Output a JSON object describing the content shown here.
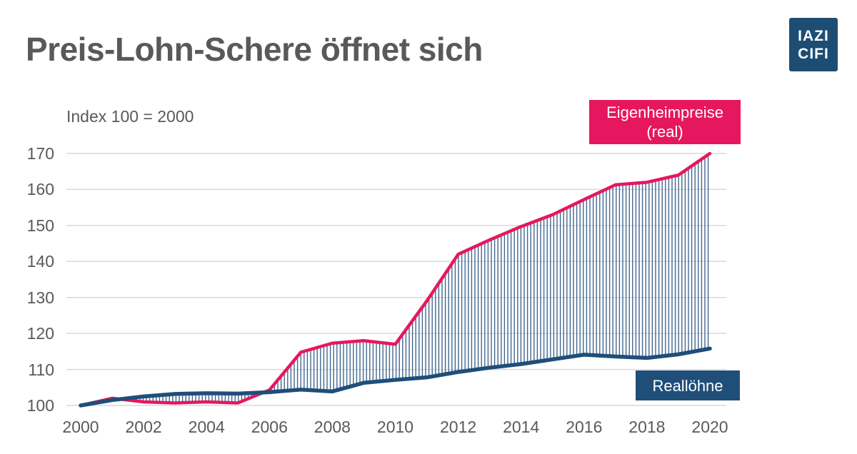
{
  "header": {
    "title": "Preis-Lohn-Schere öffnet sich",
    "logo_lines": [
      "IAZI",
      "CIFI"
    ],
    "logo_color": "#1d4d73",
    "text_color": "#595959"
  },
  "chart_data": {
    "type": "line",
    "title": "Preis-Lohn-Schere öffnet sich",
    "subtitle": "Index 100 = 2000",
    "x": [
      2000,
      2001,
      2002,
      2003,
      2004,
      2005,
      2006,
      2007,
      2008,
      2009,
      2010,
      2011,
      2012,
      2013,
      2014,
      2015,
      2016,
      2017,
      2018,
      2019,
      2020
    ],
    "series": [
      {
        "name": "Eigenheimpreise (real)",
        "label_lines": [
          "Eigenheimpreise",
          "(real)"
        ],
        "color": "#e6175e",
        "values": [
          100,
          102,
          101,
          100.7,
          101,
          100.7,
          104.3,
          114.8,
          117.3,
          118,
          117,
          129,
          142,
          146,
          149.7,
          153,
          157.2,
          161.3,
          162,
          164,
          170
        ]
      },
      {
        "name": "Reallöhne",
        "label_lines": [
          "Reallöhne"
        ],
        "color": "#1f4e79",
        "values": [
          100,
          101.5,
          102.5,
          103.2,
          103.4,
          103.3,
          103.7,
          104.4,
          103.9,
          106.3,
          107.1,
          107.8,
          109.3,
          110.5,
          111.5,
          112.8,
          114.1,
          113.6,
          113.2,
          114.2,
          115.8
        ]
      }
    ],
    "ylim": [
      100,
      170
    ],
    "yticks": [
      100,
      110,
      120,
      130,
      140,
      150,
      160,
      170
    ],
    "xticks": [
      2000,
      2002,
      2004,
      2006,
      2008,
      2010,
      2012,
      2014,
      2016,
      2018,
      2020
    ],
    "grid": true,
    "legend_position": "inline-annotations",
    "fill_between": "vertical-hatch",
    "colors": {
      "grid": "#d9d9d9",
      "hatch": "#41678f",
      "axis_text": "#595959"
    }
  }
}
